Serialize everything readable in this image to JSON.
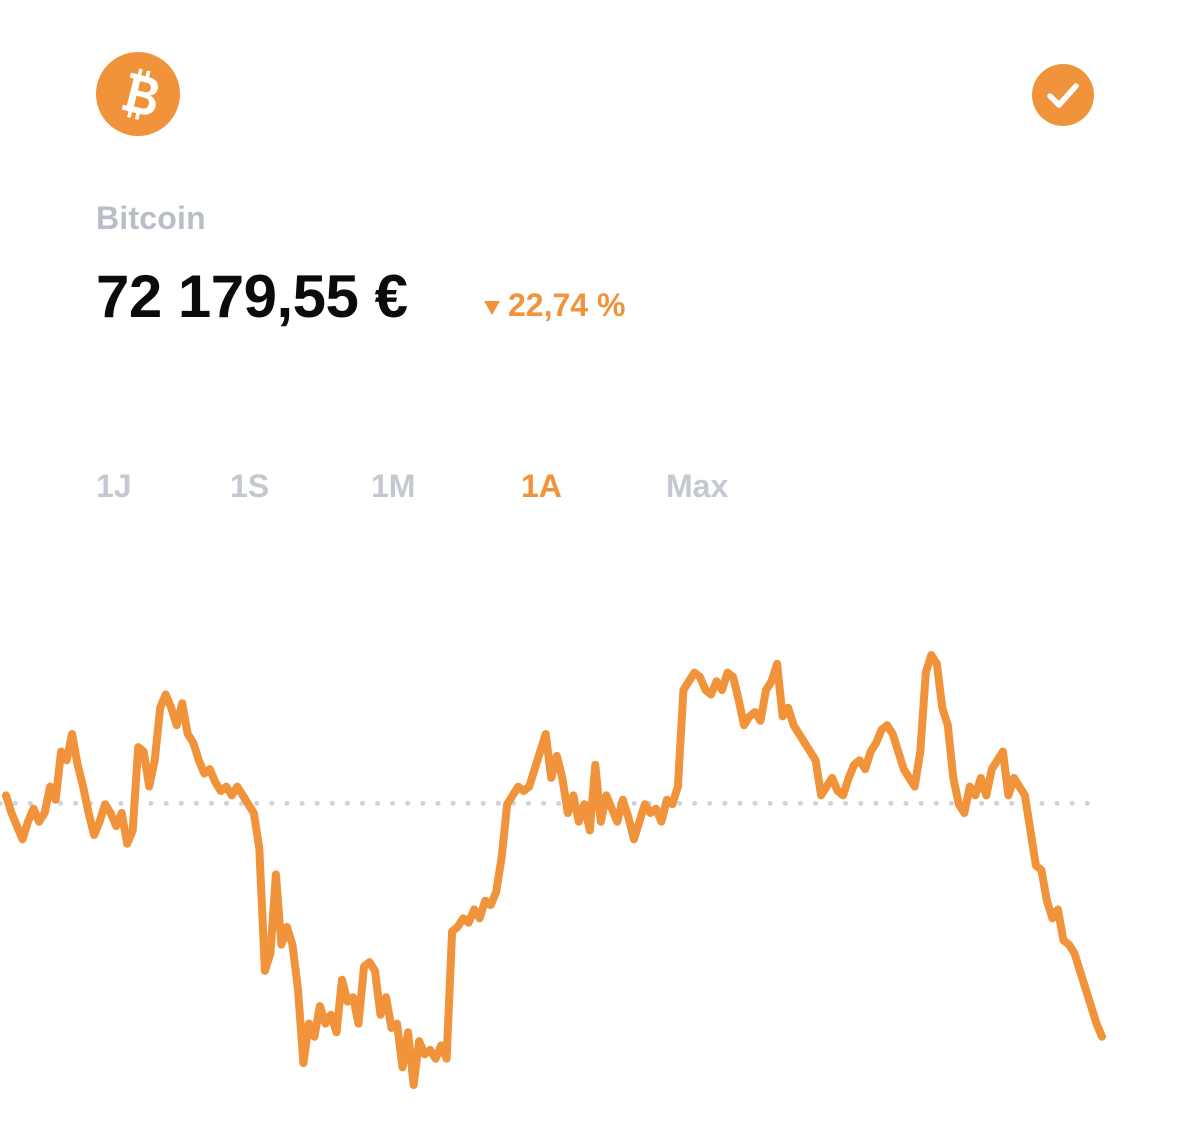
{
  "header": {
    "logo_icon": "bitcoin-icon",
    "verified_icon": "checkmark-icon"
  },
  "asset": {
    "name": "Bitcoin",
    "price": "72 179,55 €",
    "change": {
      "direction": "down",
      "value": "22,74 %",
      "icon": "triangle-down-icon"
    }
  },
  "periods": [
    {
      "label": "1J",
      "active": false
    },
    {
      "label": "1S",
      "active": false
    },
    {
      "label": "1M",
      "active": false
    },
    {
      "label": "1A",
      "active": true
    },
    {
      "label": "Max",
      "active": false
    }
  ],
  "colors": {
    "accent": "#f0933a",
    "muted": "#c3c8d2",
    "label": "#b8bec9",
    "text": "#0b0b0b",
    "reference": "#cfd4dc"
  },
  "chart_data": {
    "type": "line",
    "grid": false,
    "reference_line": "dotted",
    "series": [
      {
        "values": [
          94.0,
          92.0,
          90.5,
          89.0,
          91.0,
          92.5,
          91.0,
          92.0,
          95.0,
          93.5,
          99.0,
          98.0,
          101.0,
          97.5,
          95.0,
          92.0,
          89.5,
          91.0,
          93.0,
          92.0,
          90.5,
          92.0,
          88.5,
          90.0,
          99.5,
          99.0,
          95.0,
          98.0,
          104.0,
          105.5,
          104.0,
          102.0,
          104.5,
          101.0,
          100.0,
          98.0,
          96.5,
          97.0,
          95.5,
          94.5,
          95.0,
          94.0,
          95.0,
          94.0,
          93.0,
          92.0,
          88.0,
          74.0,
          76.0,
          85.0,
          77.0,
          79.0,
          77.0,
          72.0,
          63.5,
          68.0,
          66.5,
          70.0,
          68.0,
          69.0,
          67.0,
          73.0,
          70.5,
          71.0,
          68.0,
          74.5,
          75.0,
          74.0,
          69.0,
          71.0,
          67.5,
          68.0,
          63.0,
          67.0,
          61.0,
          66.0,
          64.5,
          65.0,
          64.0,
          65.5,
          64.0,
          78.5,
          79.0,
          80.0,
          79.5,
          81.0,
          80.0,
          82.0,
          81.5,
          83.0,
          87.0,
          93.0,
          94.0,
          95.0,
          94.5,
          95.0,
          97.0,
          99.0,
          101.0,
          96.0,
          98.5,
          96.0,
          92.0,
          94.0,
          91.0,
          93.0,
          90.0,
          97.5,
          91.0,
          94.0,
          92.5,
          91.0,
          93.5,
          91.5,
          89.0,
          91.0,
          93.0,
          92.0,
          92.5,
          91.0,
          93.5,
          93.0,
          95.0,
          106.0,
          107.0,
          108.0,
          107.5,
          106.0,
          105.5,
          107.0,
          106.0,
          108.0,
          107.5,
          105.0,
          102.0,
          103.0,
          103.5,
          102.5,
          106.0,
          107.0,
          109.0,
          103.0,
          104.0,
          102.0,
          101.0,
          100.0,
          99.0,
          98.0,
          94.0,
          95.0,
          96.0,
          94.5,
          94.0,
          96.0,
          97.5,
          98.0,
          97.0,
          99.0,
          100.0,
          101.5,
          102.0,
          101.0,
          99.0,
          97.0,
          96.0,
          95.0,
          99.0,
          108.0,
          110.0,
          109.0,
          104.0,
          102.0,
          96.0,
          93.0,
          92.0,
          95.0,
          94.0,
          96.0,
          94.0,
          97.0,
          98.0,
          99.0,
          94.0,
          96.0,
          95.0,
          94.0,
          90.0,
          86.0,
          85.5,
          82.0,
          80.0,
          81.0,
          77.5,
          77.0,
          76.0,
          74.0,
          72.0,
          70.0,
          68.0,
          66.5
        ]
      }
    ]
  }
}
